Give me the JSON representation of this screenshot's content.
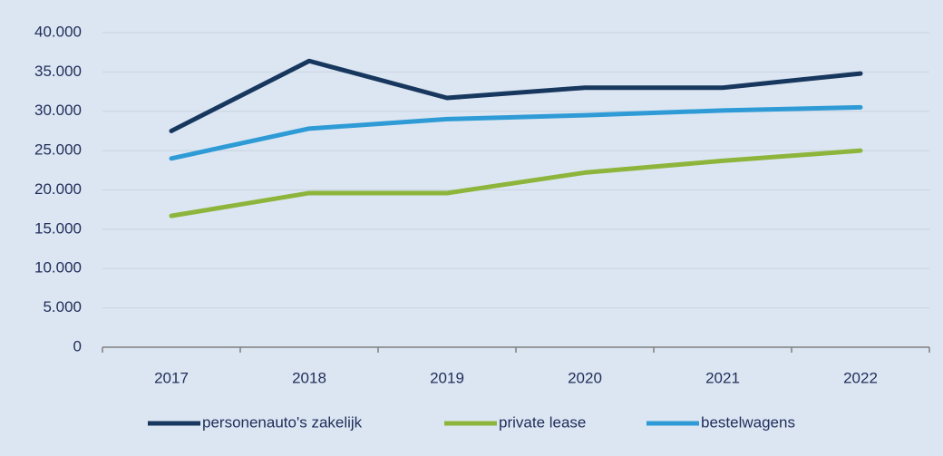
{
  "chart_data": {
    "type": "line",
    "categories": [
      "2017",
      "2018",
      "2019",
      "2020",
      "2021",
      "2022"
    ],
    "series": [
      {
        "name": "personenauto's zakelijk",
        "color": "#17375e",
        "values": [
          27500,
          36400,
          31700,
          33000,
          33000,
          34800
        ]
      },
      {
        "name": "private lease",
        "color": "#8db53c",
        "values": [
          16700,
          19600,
          19600,
          22200,
          23700,
          25000
        ]
      },
      {
        "name": "bestelwagens",
        "color": "#2e9bd6",
        "values": [
          24000,
          27800,
          29000,
          29500,
          30100,
          30500
        ]
      }
    ],
    "ylim": [
      0,
      40000
    ],
    "yticks": [
      0,
      {
        "value": 5000,
        "label": "5.000"
      },
      {
        "value": 10000,
        "label": "10.000"
      },
      {
        "value": 15000,
        "label": "15.000"
      },
      {
        "value": 20000,
        "label": "20.000"
      },
      {
        "value": 25000,
        "label": "25.000"
      },
      {
        "value": 30000,
        "label": "30.000"
      },
      {
        "value": 35000,
        "label": "35.000"
      },
      {
        "value": 40000,
        "label": "40.000"
      }
    ],
    "grid": true,
    "legend": "bottom"
  }
}
